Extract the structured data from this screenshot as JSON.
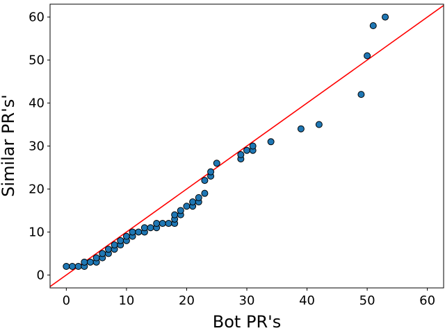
{
  "chart_data": {
    "type": "scatter",
    "title": "",
    "xlabel": "Bot PR's",
    "ylabel": "Similar PR's'",
    "xlim": [
      -2.7,
      62.7
    ],
    "ylim": [
      -3,
      63
    ],
    "xticks": [
      0,
      10,
      20,
      30,
      40,
      50,
      60
    ],
    "yticks": [
      0,
      10,
      20,
      30,
      40,
      50,
      60
    ],
    "grid": false,
    "legend": "none",
    "point_color": "#1f77b4",
    "point_edge_color": "#000000",
    "line_color": "#ff0000",
    "reference_line": {
      "x": [
        -2.7,
        62.7
      ],
      "y": [
        -2.7,
        62.7
      ]
    },
    "series": [
      {
        "points": [
          [
            0,
            2
          ],
          [
            1,
            2
          ],
          [
            2,
            2
          ],
          [
            3,
            2
          ],
          [
            3,
            3
          ],
          [
            4,
            3
          ],
          [
            5,
            3
          ],
          [
            5,
            4
          ],
          [
            6,
            4
          ],
          [
            6,
            5
          ],
          [
            7,
            5
          ],
          [
            7,
            6
          ],
          [
            8,
            6
          ],
          [
            8,
            7
          ],
          [
            9,
            7
          ],
          [
            9,
            8
          ],
          [
            10,
            8
          ],
          [
            10,
            9
          ],
          [
            11,
            9
          ],
          [
            11,
            10
          ],
          [
            12,
            10
          ],
          [
            13,
            10
          ],
          [
            13,
            11
          ],
          [
            14,
            11
          ],
          [
            15,
            11
          ],
          [
            15,
            12
          ],
          [
            16,
            12
          ],
          [
            17,
            12
          ],
          [
            18,
            12
          ],
          [
            18,
            13
          ],
          [
            18,
            14
          ],
          [
            19,
            14
          ],
          [
            19,
            15
          ],
          [
            20,
            16
          ],
          [
            21,
            16
          ],
          [
            21,
            17
          ],
          [
            22,
            17
          ],
          [
            22,
            18
          ],
          [
            23,
            19
          ],
          [
            23,
            22
          ],
          [
            24,
            23
          ],
          [
            24,
            24
          ],
          [
            25,
            26
          ],
          [
            29,
            27
          ],
          [
            29,
            28
          ],
          [
            30,
            29
          ],
          [
            31,
            29
          ],
          [
            31,
            30
          ],
          [
            34,
            31
          ],
          [
            39,
            34
          ],
          [
            42,
            35
          ],
          [
            49,
            42
          ],
          [
            50,
            51
          ],
          [
            51,
            58
          ],
          [
            53,
            60
          ]
        ]
      }
    ]
  }
}
